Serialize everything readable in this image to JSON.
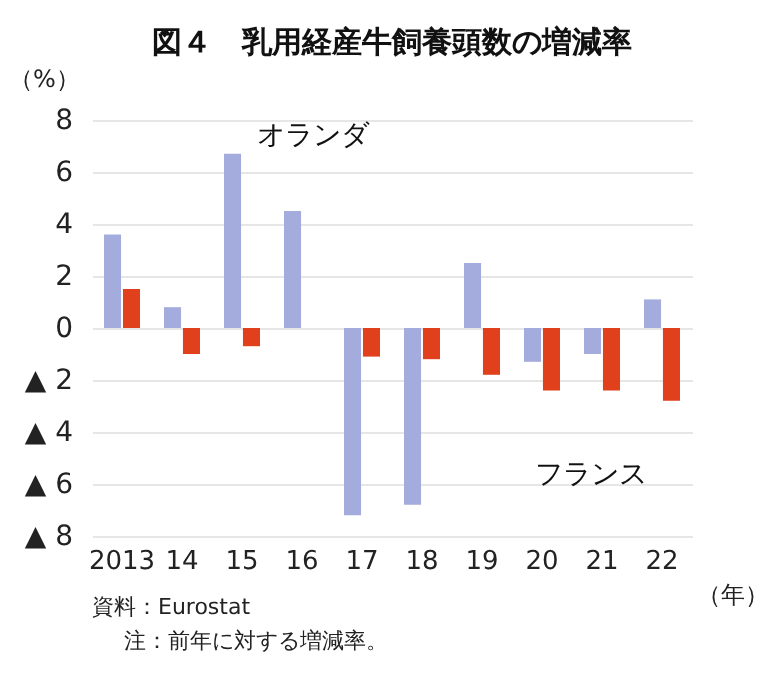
{
  "chart_data": {
    "type": "bar",
    "title": "図４　乳用経産牛飼養頭数の増減率",
    "ylabel": "（%）",
    "xlabel": "（年）",
    "categories": [
      "2013",
      "14",
      "15",
      "16",
      "17",
      "18",
      "19",
      "20",
      "21",
      "22"
    ],
    "series": [
      {
        "name": "オランダ",
        "color": "#a3acdc",
        "values": [
          3.6,
          0.8,
          6.7,
          4.5,
          -7.2,
          -6.8,
          2.5,
          -1.3,
          -1.0,
          1.1
        ]
      },
      {
        "name": "フランス",
        "color": "#e0401c",
        "values": [
          1.5,
          -1.0,
          -0.7,
          0,
          -1.1,
          -1.2,
          -1.8,
          -2.4,
          -2.4,
          -2.8
        ]
      }
    ],
    "ylim": [
      -8,
      8
    ],
    "yticks": [
      {
        "value": -8,
        "label": "▲ 8"
      },
      {
        "value": -6,
        "label": "▲ 6"
      },
      {
        "value": -4,
        "label": "▲ 4"
      },
      {
        "value": -2,
        "label": "▲ 2"
      },
      0,
      2,
      4,
      6,
      8
    ],
    "grid": "y",
    "legend": false,
    "annotations": [
      "資料：Eurostat",
      "注：前年に対する増減率。"
    ]
  }
}
